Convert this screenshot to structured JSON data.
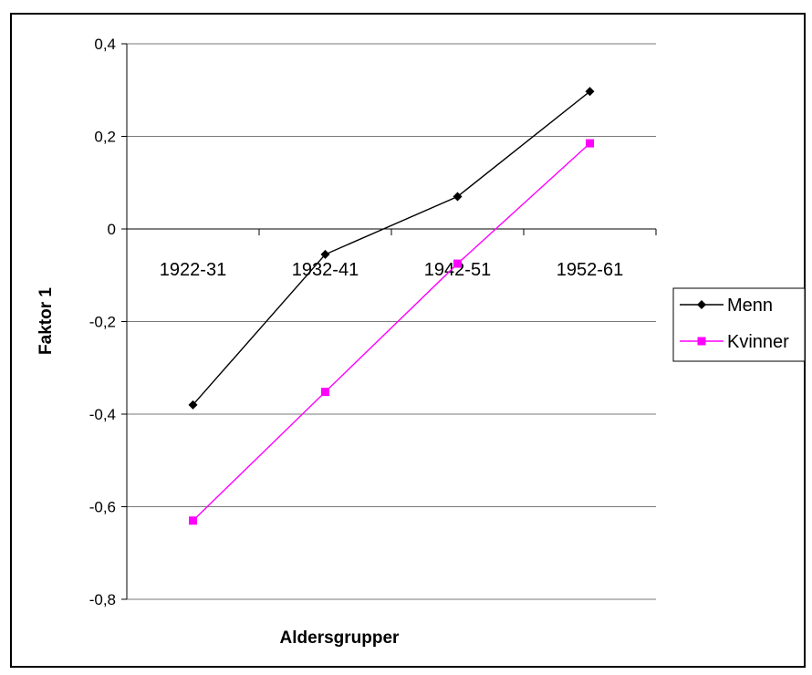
{
  "chart_data": {
    "type": "line",
    "title": "",
    "xlabel": "Aldersgrupper",
    "ylabel": "Faktor 1",
    "categories": [
      "1922-31",
      "1932-41",
      "1942-51",
      "1952-61"
    ],
    "ylim": [
      -0.8,
      0.4
    ],
    "yticks": [
      0.4,
      0.2,
      0,
      -0.2,
      -0.4,
      -0.6,
      -0.8
    ],
    "ytick_labels": [
      "0,4",
      "0,2",
      "0",
      "-0,2",
      "-0,4",
      "-0,6",
      "-0,8"
    ],
    "grid": true,
    "legend_position": "right",
    "series": [
      {
        "name": "Menn",
        "values": [
          -0.38,
          -0.055,
          0.07,
          0.297
        ],
        "color": "#000000",
        "marker": "diamond"
      },
      {
        "name": "Kvinner",
        "values": [
          -0.63,
          -0.352,
          -0.075,
          0.185
        ],
        "color": "#ff00ff",
        "marker": "square"
      }
    ]
  }
}
